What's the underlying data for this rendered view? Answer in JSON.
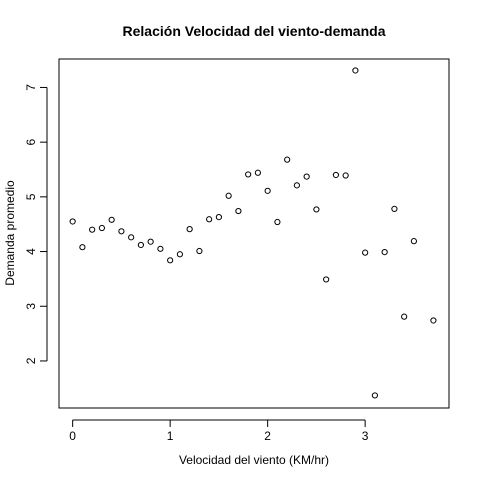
{
  "chart_data": {
    "type": "scatter",
    "title": "Relación Velocidad del viento-demanda",
    "xlabel": "Velocidad del viento (KM/hr)",
    "ylabel": "Demanda promedio",
    "xlim": [
      -0.14,
      3.86
    ],
    "ylim": [
      1.14,
      7.52
    ],
    "x_ticks": [
      0,
      1,
      2,
      3
    ],
    "y_ticks": [
      2,
      3,
      4,
      5,
      6,
      7
    ],
    "grid": false,
    "legend": "none",
    "marker": "open-circle",
    "point_color": "#000000",
    "points": [
      {
        "x": 0.0,
        "y": 4.55
      },
      {
        "x": 0.1,
        "y": 4.08
      },
      {
        "x": 0.2,
        "y": 4.4
      },
      {
        "x": 0.3,
        "y": 4.43
      },
      {
        "x": 0.4,
        "y": 4.58
      },
      {
        "x": 0.5,
        "y": 4.37
      },
      {
        "x": 0.6,
        "y": 4.26
      },
      {
        "x": 0.7,
        "y": 4.12
      },
      {
        "x": 0.8,
        "y": 4.18
      },
      {
        "x": 0.9,
        "y": 4.05
      },
      {
        "x": 1.0,
        "y": 3.84
      },
      {
        "x": 1.1,
        "y": 3.95
      },
      {
        "x": 1.2,
        "y": 4.41
      },
      {
        "x": 1.3,
        "y": 4.01
      },
      {
        "x": 1.4,
        "y": 4.59
      },
      {
        "x": 1.5,
        "y": 4.63
      },
      {
        "x": 1.6,
        "y": 5.02
      },
      {
        "x": 1.7,
        "y": 4.74
      },
      {
        "x": 1.8,
        "y": 5.41
      },
      {
        "x": 1.9,
        "y": 5.44
      },
      {
        "x": 2.0,
        "y": 5.11
      },
      {
        "x": 2.1,
        "y": 4.54
      },
      {
        "x": 2.2,
        "y": 5.68
      },
      {
        "x": 2.3,
        "y": 5.21
      },
      {
        "x": 2.4,
        "y": 5.37
      },
      {
        "x": 2.5,
        "y": 4.77
      },
      {
        "x": 2.6,
        "y": 3.49
      },
      {
        "x": 2.7,
        "y": 5.4
      },
      {
        "x": 2.8,
        "y": 5.39
      },
      {
        "x": 2.9,
        "y": 7.31
      },
      {
        "x": 3.0,
        "y": 3.98
      },
      {
        "x": 3.1,
        "y": 1.37
      },
      {
        "x": 3.2,
        "y": 3.99
      },
      {
        "x": 3.3,
        "y": 4.78
      },
      {
        "x": 3.4,
        "y": 2.81
      },
      {
        "x": 3.5,
        "y": 4.19
      },
      {
        "x": 3.7,
        "y": 2.74
      }
    ]
  }
}
